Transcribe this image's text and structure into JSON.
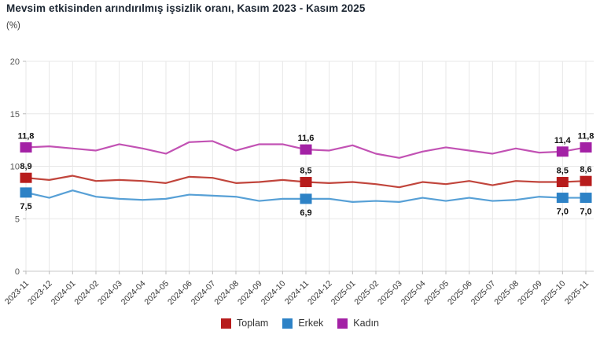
{
  "header": {
    "title": "Mevsim etkisinden arındırılmış işsizlik oranı, Kasım 2023 - Kasım 2025",
    "subtitle": "(%)"
  },
  "legend": [
    {
      "label": "Toplam",
      "color": "#b71c1c"
    },
    {
      "label": "Erkek",
      "color": "#2d82c6"
    },
    {
      "label": "Kadın",
      "color": "#a321a5"
    }
  ],
  "colors": {
    "grid": "#e7e7e7",
    "axis": "#c9c9c9",
    "tick": "#bbbbbb",
    "y_tick_text": "#555555",
    "x_tick_text": "#333333",
    "point_label_text": "#111111"
  },
  "chart_data": {
    "type": "line",
    "x": [
      "2023-11",
      "2023-12",
      "2024-01",
      "2024-02",
      "2024-03",
      "2024-04",
      "2024-05",
      "2024-06",
      "2024-07",
      "2024-08",
      "2024-09",
      "2024-10",
      "2024-11",
      "2024-12",
      "2025-01",
      "2025-02",
      "2025-03",
      "2025-04",
      "2025-05",
      "2025-06",
      "2025-07",
      "2025-08",
      "2025-09",
      "2025-10",
      "2025-11"
    ],
    "series": [
      {
        "name": "Toplam",
        "line_color": "#c1453c",
        "marker_color": "#b71c1c",
        "label_side": "above",
        "values": [
          8.9,
          8.7,
          9.1,
          8.6,
          8.7,
          8.6,
          8.4,
          9.0,
          8.9,
          8.4,
          8.5,
          8.7,
          8.5,
          8.4,
          8.5,
          8.3,
          8.0,
          8.5,
          8.3,
          8.6,
          8.2,
          8.6,
          8.5,
          8.5,
          8.6
        ]
      },
      {
        "name": "Erkek",
        "line_color": "#57a0d6",
        "marker_color": "#2d82c6",
        "label_side": "below",
        "values": [
          7.5,
          7.0,
          7.7,
          7.1,
          6.9,
          6.8,
          6.9,
          7.3,
          7.2,
          7.1,
          6.7,
          6.9,
          6.9,
          6.9,
          6.6,
          6.7,
          6.6,
          7.0,
          6.7,
          7.0,
          6.7,
          6.8,
          7.1,
          7.0,
          7.0
        ]
      },
      {
        "name": "Kadın",
        "line_color": "#c252b4",
        "marker_color": "#a321a5",
        "label_side": "above",
        "values": [
          11.8,
          11.9,
          11.7,
          11.5,
          12.1,
          11.7,
          11.2,
          12.3,
          12.4,
          11.5,
          12.1,
          12.1,
          11.6,
          11.5,
          12.0,
          11.2,
          10.8,
          11.4,
          11.8,
          11.5,
          11.2,
          11.7,
          11.3,
          11.4,
          11.8
        ]
      }
    ],
    "labeled_points": [
      "2023-11",
      "2024-11",
      "2025-10",
      "2025-11"
    ],
    "labeled_values": {
      "Kadın": {
        "2023-11": "11,8",
        "2024-11": "11,6",
        "2025-10": "11,4",
        "2025-11": "11,8"
      },
      "Toplam": {
        "2023-11": "8,9",
        "2024-11": "8,5",
        "2025-10": "8,5",
        "2025-11": "8,6"
      },
      "Erkek": {
        "2023-11": "7,5",
        "2024-11": "6,9",
        "2025-10": "7,0",
        "2025-11": "7,0"
      }
    },
    "title": "Mevsim etkisinden arındırılmış işsizlik oranı, Kasım 2023 - Kasım 2025",
    "ylabel": "(%)",
    "xlabel": "",
    "ylim": [
      0,
      20
    ],
    "yticks": [
      0,
      5,
      10,
      15,
      20
    ],
    "grid": true,
    "decimal_separator": ",",
    "legend_position": "bottom"
  }
}
